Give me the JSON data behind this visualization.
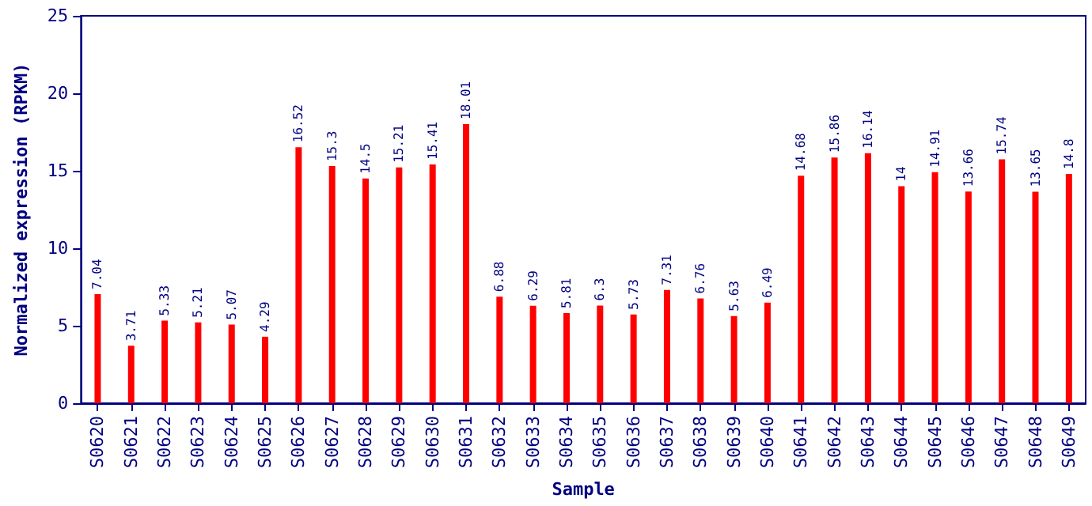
{
  "chart_data": {
    "type": "bar",
    "xlabel": "Sample",
    "ylabel": "Normalized expression (RPKM)",
    "categories": [
      "S0620",
      "S0621",
      "S0622",
      "S0623",
      "S0624",
      "S0625",
      "S0626",
      "S0627",
      "S0628",
      "S0629",
      "S0630",
      "S0631",
      "S0632",
      "S0633",
      "S0634",
      "S0635",
      "S0636",
      "S0637",
      "S0638",
      "S0639",
      "S0640",
      "S0641",
      "S0642",
      "S0643",
      "S0644",
      "S0645",
      "S0646",
      "S0647",
      "S0648",
      "S0649"
    ],
    "values": [
      7.04,
      3.71,
      5.33,
      5.21,
      5.07,
      4.29,
      16.52,
      15.3,
      14.5,
      15.21,
      15.41,
      18.01,
      6.88,
      6.29,
      5.81,
      6.3,
      5.73,
      7.31,
      6.76,
      5.63,
      6.49,
      14.68,
      15.86,
      16.14,
      14,
      14.91,
      13.66,
      15.74,
      13.65,
      14.8
    ],
    "color": "#ff0000",
    "ylim": [
      0,
      25
    ],
    "yticks": [
      0,
      5,
      10,
      15,
      20,
      25
    ],
    "data_labels": true
  }
}
